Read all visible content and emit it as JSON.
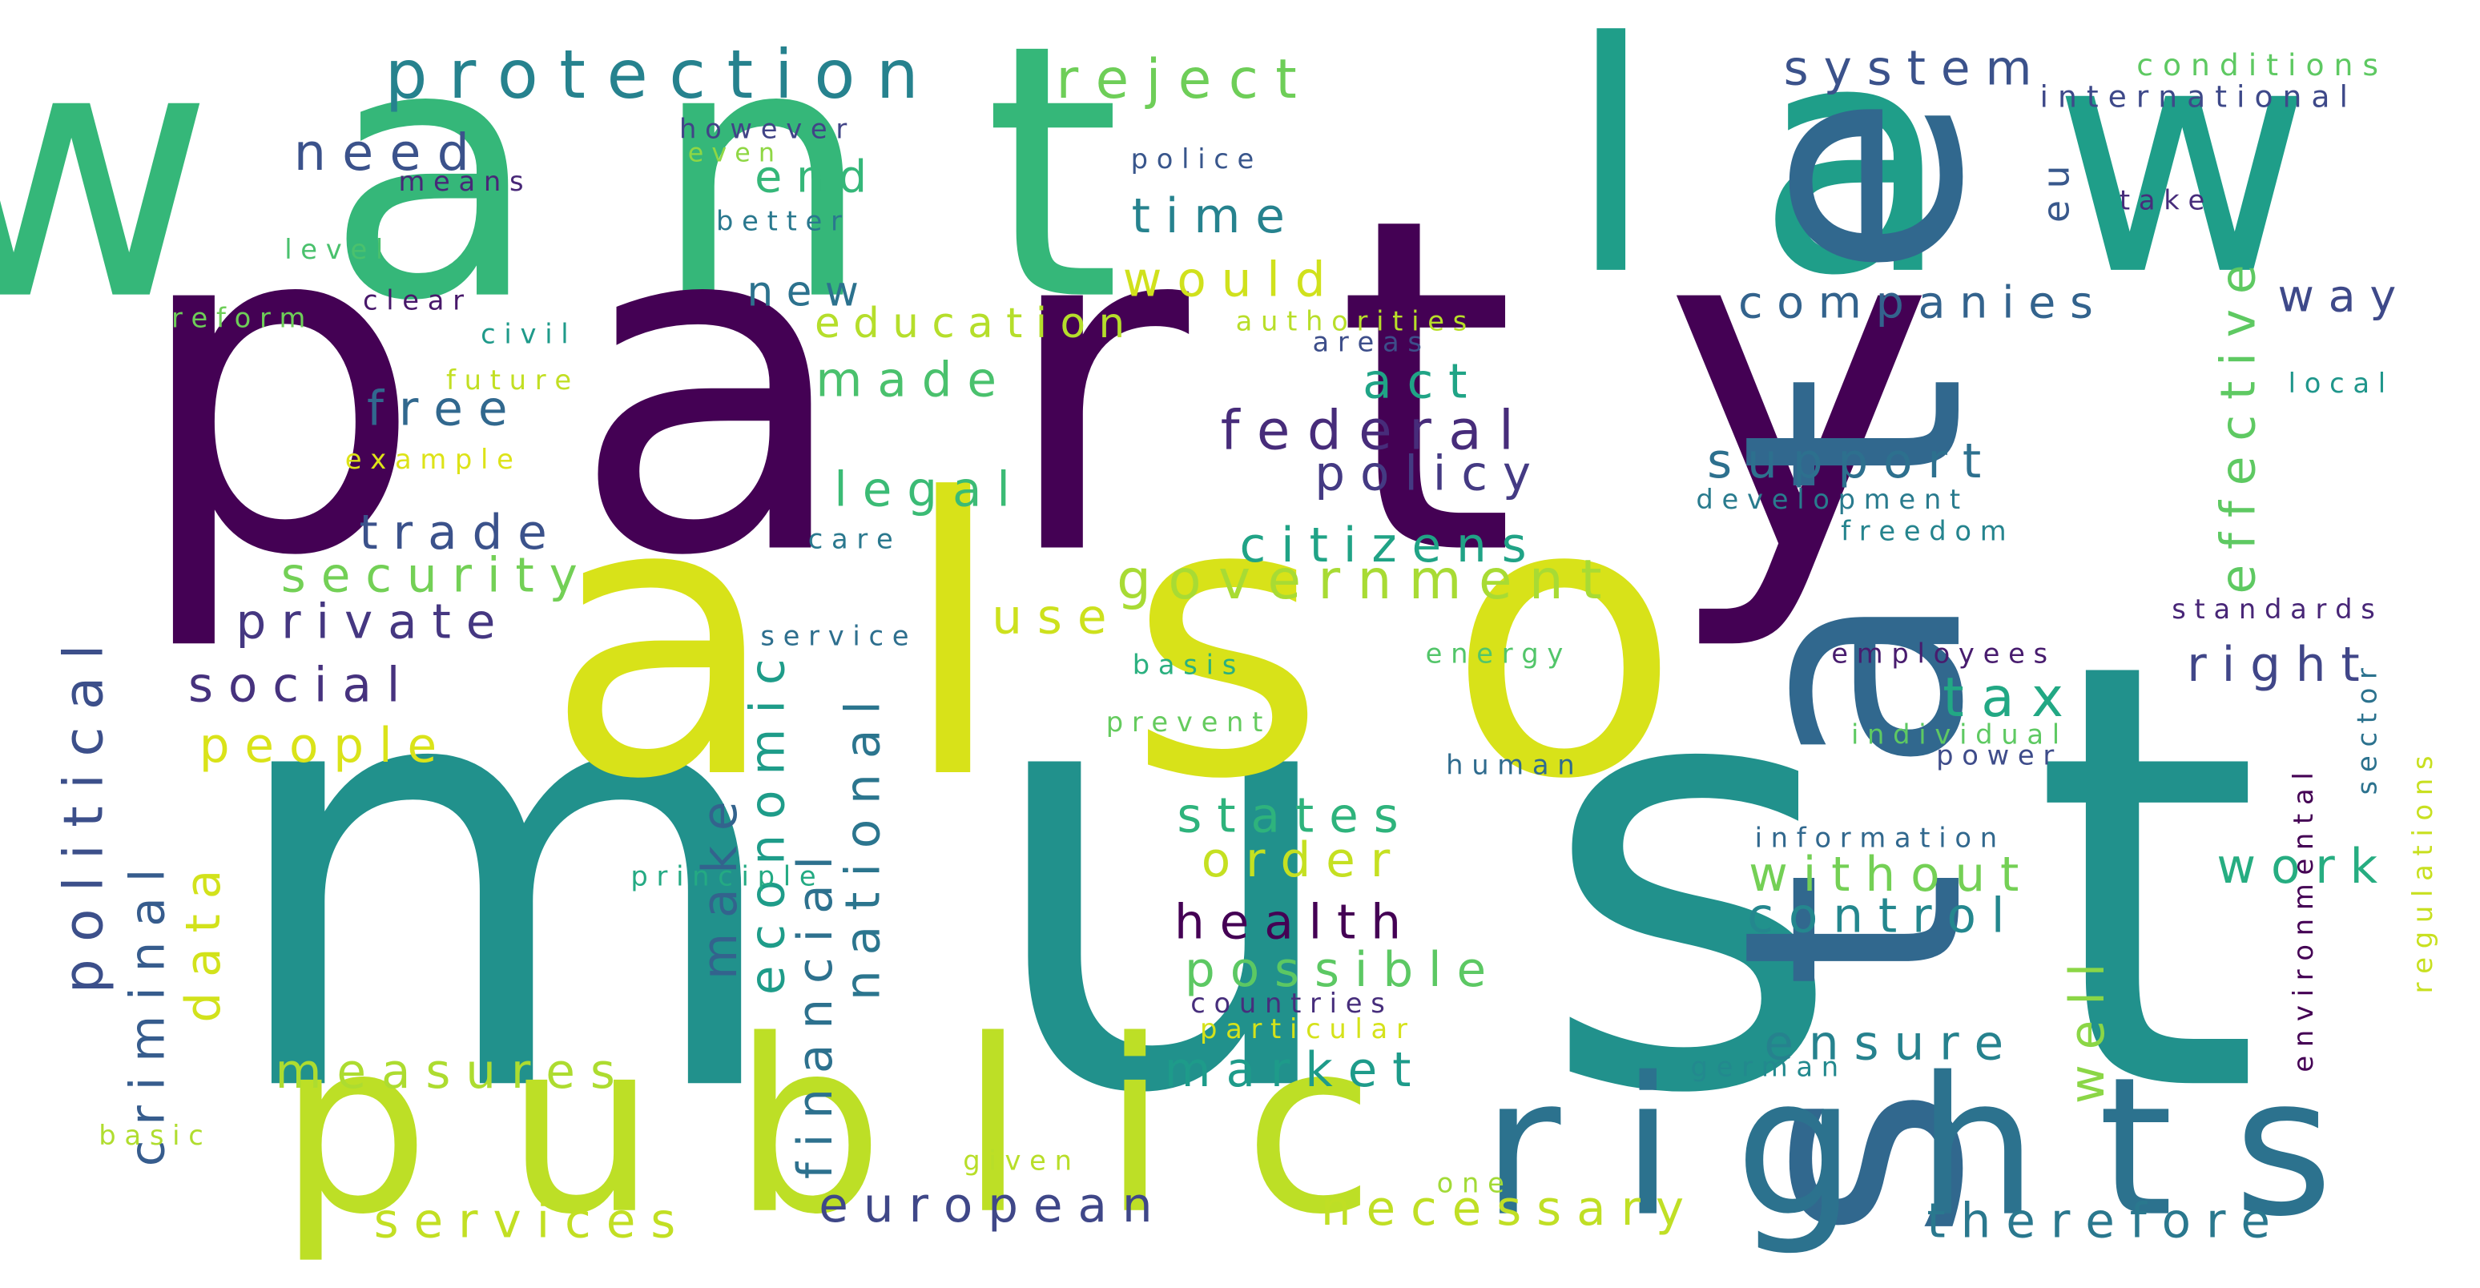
{
  "words": [
    {
      "text": "w a n t",
      "color": "#35b779"
    },
    {
      "text": "l a w",
      "color": "#1f9e89"
    },
    {
      "text": "p a r t y",
      "color": "#440154"
    },
    {
      "text": "m u s t",
      "color": "#21918c"
    },
    {
      "text": "a l s o",
      "color": "#d8e219"
    },
    {
      "text": "s t a t e",
      "color": "#31688e"
    },
    {
      "text": "p u b l i c",
      "color": "#bddf26"
    },
    {
      "text": "r i g h t s",
      "color": "#2c728e"
    },
    {
      "text": "p r o t e c t i o n",
      "color": "#26828e"
    },
    {
      "text": "r e j e c t",
      "color": "#6ece58"
    },
    {
      "text": "s y s t e m",
      "color": "#3b528b"
    },
    {
      "text": "c o n d i t i o n s",
      "color": "#5ec962"
    },
    {
      "text": "i n t e r n a t i o n a l",
      "color": "#3e4989"
    },
    {
      "text": "h o w e v e r",
      "color": "#414487"
    },
    {
      "text": "n e e d",
      "color": "#3b528b"
    },
    {
      "text": "e n d",
      "color": "#35b779"
    },
    {
      "text": "e v e n",
      "color": "#8fd744"
    },
    {
      "text": "m e a n s",
      "color": "#482878"
    },
    {
      "text": "p o l i c e",
      "color": "#39568c"
    },
    {
      "text": "t i m e",
      "color": "#26828e"
    },
    {
      "text": "b e t t e r",
      "color": "#2a788e"
    },
    {
      "text": "e u",
      "color": "#38588c"
    },
    {
      "text": "t a k e",
      "color": "#472d7b"
    },
    {
      "text": "e f f e c t i v e",
      "color": "#5ec962"
    },
    {
      "text": "l e v e l",
      "color": "#4ac16d"
    },
    {
      "text": "w o u l d",
      "color": "#d0e11c"
    },
    {
      "text": "n e w",
      "color": "#2c728e"
    },
    {
      "text": "c o m p a n i e s",
      "color": "#33638d"
    },
    {
      "text": "w a y",
      "color": "#3e4989"
    },
    {
      "text": "r e f o r m",
      "color": "#6ece58"
    },
    {
      "text": "c l e a r",
      "color": "#48186a"
    },
    {
      "text": "e d u c a t i o n",
      "color": "#b5de2b"
    },
    {
      "text": "a u t h o r i t i e s",
      "color": "#b8de29"
    },
    {
      "text": "c i v i l",
      "color": "#1f9a8a"
    },
    {
      "text": "a r e a s",
      "color": "#3d4e8a"
    },
    {
      "text": "m a d e",
      "color": "#4ac16d"
    },
    {
      "text": "a c t",
      "color": "#20a486"
    },
    {
      "text": "f u t u r e",
      "color": "#c2df23"
    },
    {
      "text": "l o c a l",
      "color": "#1f968b"
    },
    {
      "text": "f r e e",
      "color": "#31688e"
    },
    {
      "text": "f e d e r a l",
      "color": "#472c7a"
    },
    {
      "text": "s u p p o r t",
      "color": "#2d708e"
    },
    {
      "text": "e x a m p l e",
      "color": "#dde318"
    },
    {
      "text": "p o l i c y",
      "color": "#443a83"
    },
    {
      "text": "l e g a l",
      "color": "#3bbb75"
    },
    {
      "text": "d e v e l o p m e n t",
      "color": "#297b8e"
    },
    {
      "text": "f r e e d o m",
      "color": "#25848e"
    },
    {
      "text": "t r a d e",
      "color": "#3b528b"
    },
    {
      "text": "c a r e",
      "color": "#2a788e"
    },
    {
      "text": "c i t i z e n s",
      "color": "#20a386"
    },
    {
      "text": "s e c u r i t y",
      "color": "#73d056"
    },
    {
      "text": "g o v e r n m e n t",
      "color": "#a8db34"
    },
    {
      "text": "p o l i t i c a l",
      "color": "#3c4f8a"
    },
    {
      "text": "p r i v a t e",
      "color": "#453781"
    },
    {
      "text": "u s e",
      "color": "#cde11d"
    },
    {
      "text": "s e r v i c e",
      "color": "#2e6f8e"
    },
    {
      "text": "s t a n d a r d s",
      "color": "#482677"
    },
    {
      "text": "e c o n o m i c",
      "color": "#1e9c89"
    },
    {
      "text": "n a t i o n a l",
      "color": "#2b758e"
    },
    {
      "text": "b a s i s",
      "color": "#2ab07f"
    },
    {
      "text": "e n e r g y",
      "color": "#52c569"
    },
    {
      "text": "e m p l o y e e s",
      "color": "#481c6e"
    },
    {
      "text": "r i g h t",
      "color": "#404688"
    },
    {
      "text": "s o c i a l",
      "color": "#46327e"
    },
    {
      "text": "t a x",
      "color": "#22a884"
    },
    {
      "text": "s e c t o r",
      "color": "#2c728e"
    },
    {
      "text": "r e g u l a t i o n s",
      "color": "#c8e020"
    },
    {
      "text": "p r e v e n t",
      "color": "#65cb5e"
    },
    {
      "text": "i n d i v i d u a l",
      "color": "#5ec962"
    },
    {
      "text": "p e o p l e",
      "color": "#dae319"
    },
    {
      "text": "h u m a n",
      "color": "#2f6b8e"
    },
    {
      "text": "p o w e r",
      "color": "#3e4c8a"
    },
    {
      "text": "e n v i r o n m e n t a l",
      "color": "#440154"
    },
    {
      "text": "f i n a n c i a l",
      "color": "#2d718e"
    },
    {
      "text": "s t a t e s",
      "color": "#2eb37c"
    },
    {
      "text": "i n f o r m a t i o n",
      "color": "#31688e"
    },
    {
      "text": "m a k e",
      "color": "#33638d"
    },
    {
      "text": "c r i m i n a l",
      "color": "#365c8d"
    },
    {
      "text": "o r d e r",
      "color": "#c5e021"
    },
    {
      "text": "w i t h o u t",
      "color": "#74d055"
    },
    {
      "text": "w o r k",
      "color": "#26ad81"
    },
    {
      "text": "p r i n c i p l e",
      "color": "#24aa83"
    },
    {
      "text": "d a t a",
      "color": "#d2e21b"
    },
    {
      "text": "h e a l t h",
      "color": "#440154"
    },
    {
      "text": "c o n t r o l",
      "color": "#24878e"
    },
    {
      "text": "w e l l",
      "color": "#8bd646"
    },
    {
      "text": "p o s s i b l e",
      "color": "#5cc863"
    },
    {
      "text": "c o u n t r i e s",
      "color": "#472e7c"
    },
    {
      "text": "p a r t i c u l a r",
      "color": "#d5e21a"
    },
    {
      "text": "g e r m a n",
      "color": "#23898e"
    },
    {
      "text": "e n s u r e",
      "color": "#26828e"
    },
    {
      "text": "m e a s u r e s",
      "color": "#addc30"
    },
    {
      "text": "m a r k e t",
      "color": "#1e9b8a"
    },
    {
      "text": "b a s i c",
      "color": "#b0dd2f"
    },
    {
      "text": "g i v e n",
      "color": "#b8de29"
    },
    {
      "text": "o n e",
      "color": "#a2da37"
    },
    {
      "text": "e u r o p e a n",
      "color": "#3f4788"
    },
    {
      "text": "n e c e s s a r y",
      "color": "#c0df25"
    },
    {
      "text": "t h e r e f o r e",
      "color": "#2a788e"
    },
    {
      "text": "s e r v i c e s",
      "color": "#c2df23"
    }
  ]
}
